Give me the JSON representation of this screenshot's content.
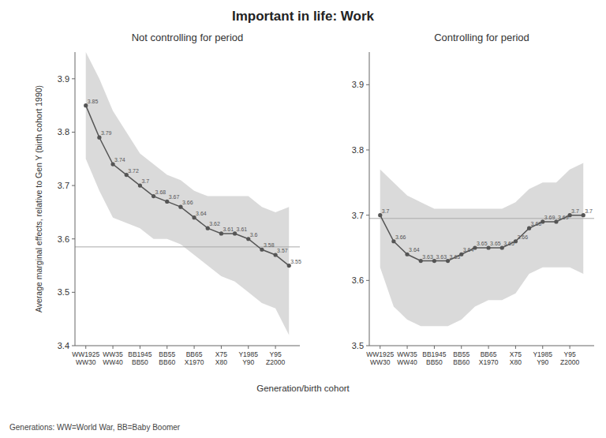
{
  "chart_data": [
    {
      "type": "line",
      "title": "Important in life: Work",
      "subtitle": "Not controlling for period",
      "xlabel": "Generation/birth cohort",
      "ylabel": "Average marginal effects, relative to Gen Y (birth cohort 1990)",
      "annotations": [
        "Generations: WW=World War, BB=Baby Boomer"
      ],
      "categories": [
        "WW1925\nWW30",
        null,
        "WW35\nWW40",
        null,
        "BB1945\nBB50",
        null,
        "BB55\nBB60",
        null,
        "BB65\nX1970",
        null,
        "X75\nX80",
        null,
        "Y1985\nY90",
        null,
        "Y95\nZ2000",
        null
      ],
      "values": [
        3.85,
        3.79,
        3.74,
        3.72,
        3.7,
        3.68,
        3.67,
        3.66,
        3.64,
        3.62,
        3.61,
        3.61,
        3.6,
        3.58,
        3.57,
        3.55
      ],
      "ci_upper": [
        3.95,
        3.9,
        3.84,
        3.8,
        3.76,
        3.74,
        3.72,
        3.71,
        3.69,
        3.68,
        3.68,
        3.68,
        3.68,
        3.66,
        3.65,
        3.66
      ],
      "ci_lower": [
        3.75,
        3.69,
        3.64,
        3.63,
        3.62,
        3.6,
        3.6,
        3.59,
        3.57,
        3.55,
        3.53,
        3.52,
        3.5,
        3.48,
        3.47,
        3.42
      ],
      "reference_line": 3.585,
      "data_labels": true,
      "color": "#555555",
      "ylim": [
        3.4,
        3.95
      ],
      "yticks": [
        3.4,
        3.5,
        3.6,
        3.7,
        3.8,
        3.9
      ]
    },
    {
      "type": "line",
      "subtitle": "Controlling for period",
      "categories": [
        "WW1925\nWW30",
        null,
        "WW35\nWW40",
        null,
        "BB1945\nBB50",
        null,
        "BB55\nBB60",
        null,
        "BB65\nX1970",
        null,
        "X75\nX80",
        null,
        "Y1985\nY90",
        null,
        "Y95\nZ2000",
        null
      ],
      "values": [
        3.7,
        3.66,
        3.64,
        3.63,
        3.63,
        3.63,
        3.64,
        3.65,
        3.65,
        3.65,
        3.66,
        3.68,
        3.69,
        3.69,
        3.7,
        3.7
      ],
      "ci_upper": [
        3.77,
        3.75,
        3.73,
        3.72,
        3.71,
        3.71,
        3.71,
        3.71,
        3.71,
        3.71,
        3.72,
        3.74,
        3.75,
        3.75,
        3.77,
        3.78
      ],
      "ci_lower": [
        3.62,
        3.56,
        3.54,
        3.53,
        3.53,
        3.53,
        3.54,
        3.56,
        3.57,
        3.57,
        3.58,
        3.61,
        3.62,
        3.62,
        3.62,
        3.61
      ],
      "reference_line": 3.695,
      "data_labels": true,
      "color": "#555555",
      "ylim": [
        3.5,
        3.95
      ],
      "yticks": [
        3.5,
        3.6,
        3.7,
        3.8,
        3.9
      ]
    }
  ]
}
